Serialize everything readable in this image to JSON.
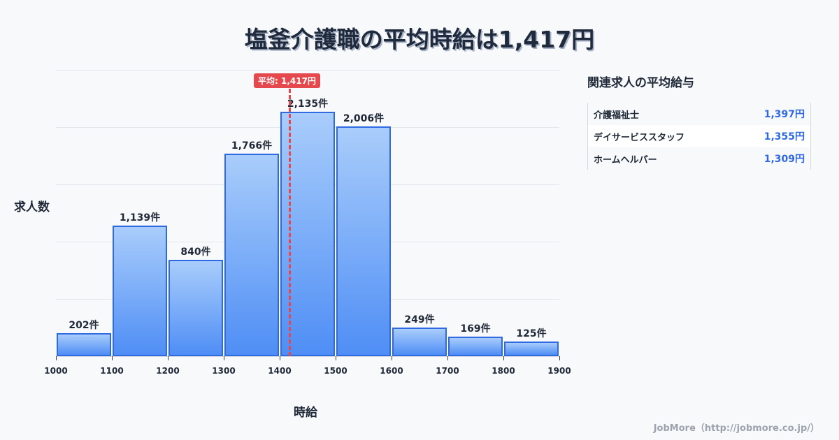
{
  "title": "塩釜介護職の平均時給は1,417円",
  "chart_data": {
    "type": "bar",
    "title": "塩釜介護職の平均時給は1,417円",
    "xlabel": "時給",
    "ylabel": "求人数",
    "x_ticks": [
      "1000",
      "1100",
      "1200",
      "1300",
      "1400",
      "1500",
      "1600",
      "1700",
      "1800",
      "1900"
    ],
    "categories": [
      "1000-1100",
      "1100-1200",
      "1200-1300",
      "1300-1400",
      "1400-1500",
      "1500-1600",
      "1600-1700",
      "1700-1800",
      "1800-1900"
    ],
    "values": [
      202,
      1139,
      840,
      1766,
      2135,
      2006,
      249,
      169,
      125
    ],
    "value_labels": [
      "202件",
      "1,139件",
      "840件",
      "1,766件",
      "2,135件",
      "2,006件",
      "249件",
      "169件",
      "125件"
    ],
    "ylim": [
      0,
      2500
    ],
    "grid": true,
    "annotation": {
      "label": "平均: 1,417円",
      "x": 1417
    }
  },
  "sidebar": {
    "title": "関連求人の平均給与",
    "items": [
      {
        "name": "介護福祉士",
        "value": "1,397円"
      },
      {
        "name": "デイサービススタッフ",
        "value": "1,355円"
      },
      {
        "name": "ホームヘルパー",
        "value": "1,309円"
      }
    ]
  },
  "footer": "JobMore（http://jobmore.co.jp/）",
  "colors": {
    "bar": "#4f8ef5",
    "bar_border": "#2f6ae3",
    "avg_line": "#e5484d",
    "accent": "#2f6ae3"
  }
}
